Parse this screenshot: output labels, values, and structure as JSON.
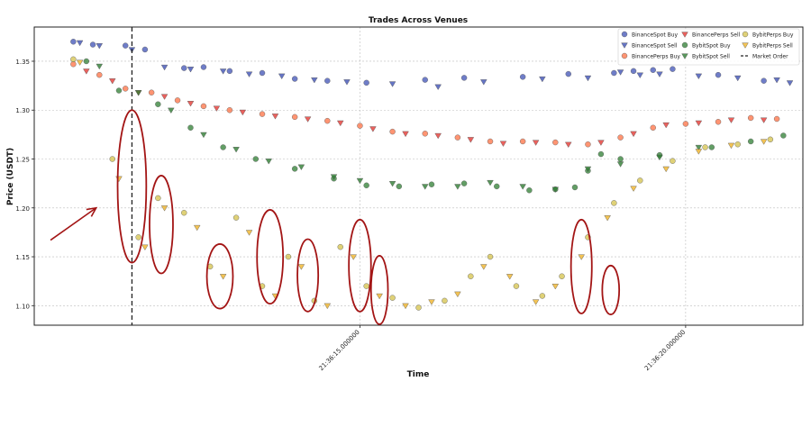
{
  "chart_data": {
    "type": "scatter",
    "title": "Trades Across Venues",
    "xlabel": "Time",
    "ylabel": "Price (USDT)",
    "x_unit": "seconds since 21:36:10.000000",
    "xlim": [
      10.0,
      21.8
    ],
    "ylim": [
      1.08,
      1.385
    ],
    "y_ticks": [
      1.1,
      1.15,
      1.2,
      1.25,
      1.3,
      1.35
    ],
    "y_tick_labels": [
      "1.10",
      "1.15",
      "1.20",
      "1.25",
      "1.30",
      "1.35"
    ],
    "x_ticks": [
      15.0,
      20.0
    ],
    "x_tick_labels": [
      "21:36:15.000000",
      "21:36:20.000000"
    ],
    "grid": true,
    "legend_position": "top-right",
    "market_order_time": 11.5,
    "series": [
      {
        "name": "BinanceSpot Buy",
        "marker": "circle",
        "color": "#3f51b5",
        "x": [
          10.6,
          10.9,
          11.4,
          11.7,
          12.3,
          12.6,
          13.0,
          13.5,
          14.0,
          14.5,
          15.1,
          16.0,
          16.6,
          17.5,
          18.2,
          18.9,
          19.2,
          19.5,
          19.8,
          20.5,
          21.2
        ],
        "y": [
          1.37,
          1.367,
          1.366,
          1.362,
          1.343,
          1.344,
          1.34,
          1.338,
          1.332,
          1.33,
          1.328,
          1.331,
          1.333,
          1.334,
          1.337,
          1.338,
          1.34,
          1.341,
          1.342,
          1.336,
          1.33
        ]
      },
      {
        "name": "BinanceSpot Sell",
        "marker": "triangle-down",
        "color": "#3f51b5",
        "x": [
          10.7,
          11.0,
          11.5,
          12.0,
          12.4,
          12.9,
          13.3,
          13.8,
          14.3,
          14.8,
          15.5,
          16.2,
          16.9,
          17.8,
          18.5,
          19.0,
          19.3,
          19.6,
          20.2,
          20.8,
          21.4,
          21.6
        ],
        "y": [
          1.369,
          1.366,
          1.362,
          1.344,
          1.342,
          1.34,
          1.337,
          1.335,
          1.331,
          1.329,
          1.327,
          1.324,
          1.329,
          1.332,
          1.333,
          1.339,
          1.336,
          1.337,
          1.335,
          1.333,
          1.331,
          1.328
        ]
      },
      {
        "name": "BinancePerps Buy",
        "marker": "circle",
        "color": "#ff7043",
        "x": [
          10.6,
          11.0,
          11.4,
          11.8,
          12.2,
          12.6,
          13.0,
          13.5,
          14.0,
          14.5,
          15.0,
          15.5,
          16.0,
          16.5,
          17.0,
          17.5,
          18.0,
          18.5,
          19.0,
          19.5,
          20.0,
          20.5,
          21.0,
          21.4
        ],
        "y": [
          1.347,
          1.336,
          1.322,
          1.318,
          1.31,
          1.304,
          1.3,
          1.296,
          1.293,
          1.289,
          1.284,
          1.278,
          1.276,
          1.272,
          1.268,
          1.268,
          1.267,
          1.265,
          1.272,
          1.282,
          1.286,
          1.288,
          1.292,
          1.291
        ]
      },
      {
        "name": "BinancePerps Sell",
        "marker": "triangle-down",
        "color": "#e53935",
        "x": [
          10.8,
          11.2,
          11.6,
          12.0,
          12.4,
          12.8,
          13.2,
          13.7,
          14.2,
          14.7,
          15.2,
          15.7,
          16.2,
          16.7,
          17.2,
          17.7,
          18.2,
          18.7,
          19.2,
          19.7,
          20.2,
          20.7,
          21.2
        ],
        "y": [
          1.34,
          1.33,
          1.318,
          1.314,
          1.307,
          1.302,
          1.298,
          1.294,
          1.291,
          1.287,
          1.281,
          1.276,
          1.274,
          1.27,
          1.266,
          1.267,
          1.265,
          1.267,
          1.276,
          1.285,
          1.287,
          1.29,
          1.29
        ]
      },
      {
        "name": "BybitSpot Buy",
        "marker": "circle",
        "color": "#2e7d32",
        "x": [
          10.8,
          11.3,
          11.9,
          12.4,
          12.9,
          13.4,
          14.0,
          14.6,
          15.1,
          15.6,
          16.1,
          16.6,
          17.1,
          17.6,
          18.0,
          18.3,
          18.5,
          18.7,
          19.0,
          19.6,
          20.4,
          21.0,
          21.5
        ],
        "y": [
          1.35,
          1.32,
          1.306,
          1.282,
          1.262,
          1.25,
          1.24,
          1.23,
          1.223,
          1.222,
          1.224,
          1.225,
          1.222,
          1.218,
          1.219,
          1.221,
          1.238,
          1.255,
          1.25,
          1.254,
          1.262,
          1.268,
          1.274
        ]
      },
      {
        "name": "BybitSpot Sell",
        "marker": "triangle-down",
        "color": "#2e7d32",
        "x": [
          11.0,
          11.6,
          12.1,
          12.6,
          13.1,
          13.6,
          14.1,
          14.6,
          15.0,
          15.5,
          16.0,
          16.5,
          17.0,
          17.5,
          18.0,
          18.5,
          19.0,
          19.6,
          20.2
        ],
        "y": [
          1.345,
          1.318,
          1.3,
          1.275,
          1.26,
          1.248,
          1.242,
          1.232,
          1.228,
          1.225,
          1.222,
          1.222,
          1.226,
          1.222,
          1.219,
          1.24,
          1.245,
          1.252,
          1.262
        ]
      },
      {
        "name": "BybitPerps Buy",
        "marker": "circle",
        "color": "#d4c24a",
        "x": [
          10.6,
          11.2,
          11.6,
          11.9,
          12.3,
          12.7,
          13.1,
          13.5,
          13.9,
          14.3,
          14.7,
          15.1,
          15.5,
          15.9,
          16.3,
          16.7,
          17.0,
          17.4,
          17.8,
          18.1,
          18.5,
          18.9,
          19.3,
          19.8,
          20.3,
          20.8,
          21.3
        ],
        "y": [
          1.352,
          1.25,
          1.17,
          1.21,
          1.195,
          1.14,
          1.19,
          1.12,
          1.15,
          1.105,
          1.16,
          1.12,
          1.108,
          1.098,
          1.105,
          1.13,
          1.15,
          1.12,
          1.11,
          1.13,
          1.17,
          1.205,
          1.228,
          1.248,
          1.262,
          1.265,
          1.27
        ]
      },
      {
        "name": "BybitPerps Sell",
        "marker": "triangle-down",
        "color": "#f0b429",
        "x": [
          10.7,
          11.3,
          11.7,
          12.0,
          12.5,
          12.9,
          13.3,
          13.7,
          14.1,
          14.5,
          14.9,
          15.3,
          15.7,
          16.1,
          16.5,
          16.9,
          17.3,
          17.7,
          18.0,
          18.4,
          18.8,
          19.2,
          19.7,
          20.2,
          20.7,
          21.2
        ],
        "y": [
          1.349,
          1.23,
          1.16,
          1.2,
          1.18,
          1.13,
          1.175,
          1.11,
          1.14,
          1.1,
          1.15,
          1.11,
          1.1,
          1.104,
          1.112,
          1.14,
          1.13,
          1.104,
          1.12,
          1.15,
          1.19,
          1.22,
          1.24,
          1.258,
          1.264,
          1.268
        ]
      }
    ],
    "market_order": {
      "name": "Market Order",
      "line": "dashed",
      "color": "#222222"
    },
    "highlight_ellipses": [
      {
        "cx": 11.5,
        "cy": 1.222,
        "rx": 0.22,
        "ry": 0.078
      },
      {
        "cx": 11.95,
        "cy": 1.183,
        "rx": 0.18,
        "ry": 0.05
      },
      {
        "cx": 12.85,
        "cy": 1.13,
        "rx": 0.2,
        "ry": 0.033
      },
      {
        "cx": 13.62,
        "cy": 1.15,
        "rx": 0.2,
        "ry": 0.048
      },
      {
        "cx": 14.2,
        "cy": 1.131,
        "rx": 0.16,
        "ry": 0.037
      },
      {
        "cx": 15.0,
        "cy": 1.141,
        "rx": 0.17,
        "ry": 0.047
      },
      {
        "cx": 15.3,
        "cy": 1.116,
        "rx": 0.13,
        "ry": 0.035
      },
      {
        "cx": 18.4,
        "cy": 1.14,
        "rx": 0.16,
        "ry": 0.048
      },
      {
        "cx": 18.85,
        "cy": 1.116,
        "rx": 0.13,
        "ry": 0.025
      }
    ],
    "annotation_arrow": {
      "x_from": 10.25,
      "y_from": 1.167,
      "x_to": 10.95,
      "y_to": 1.2,
      "color": "#a31515"
    }
  }
}
